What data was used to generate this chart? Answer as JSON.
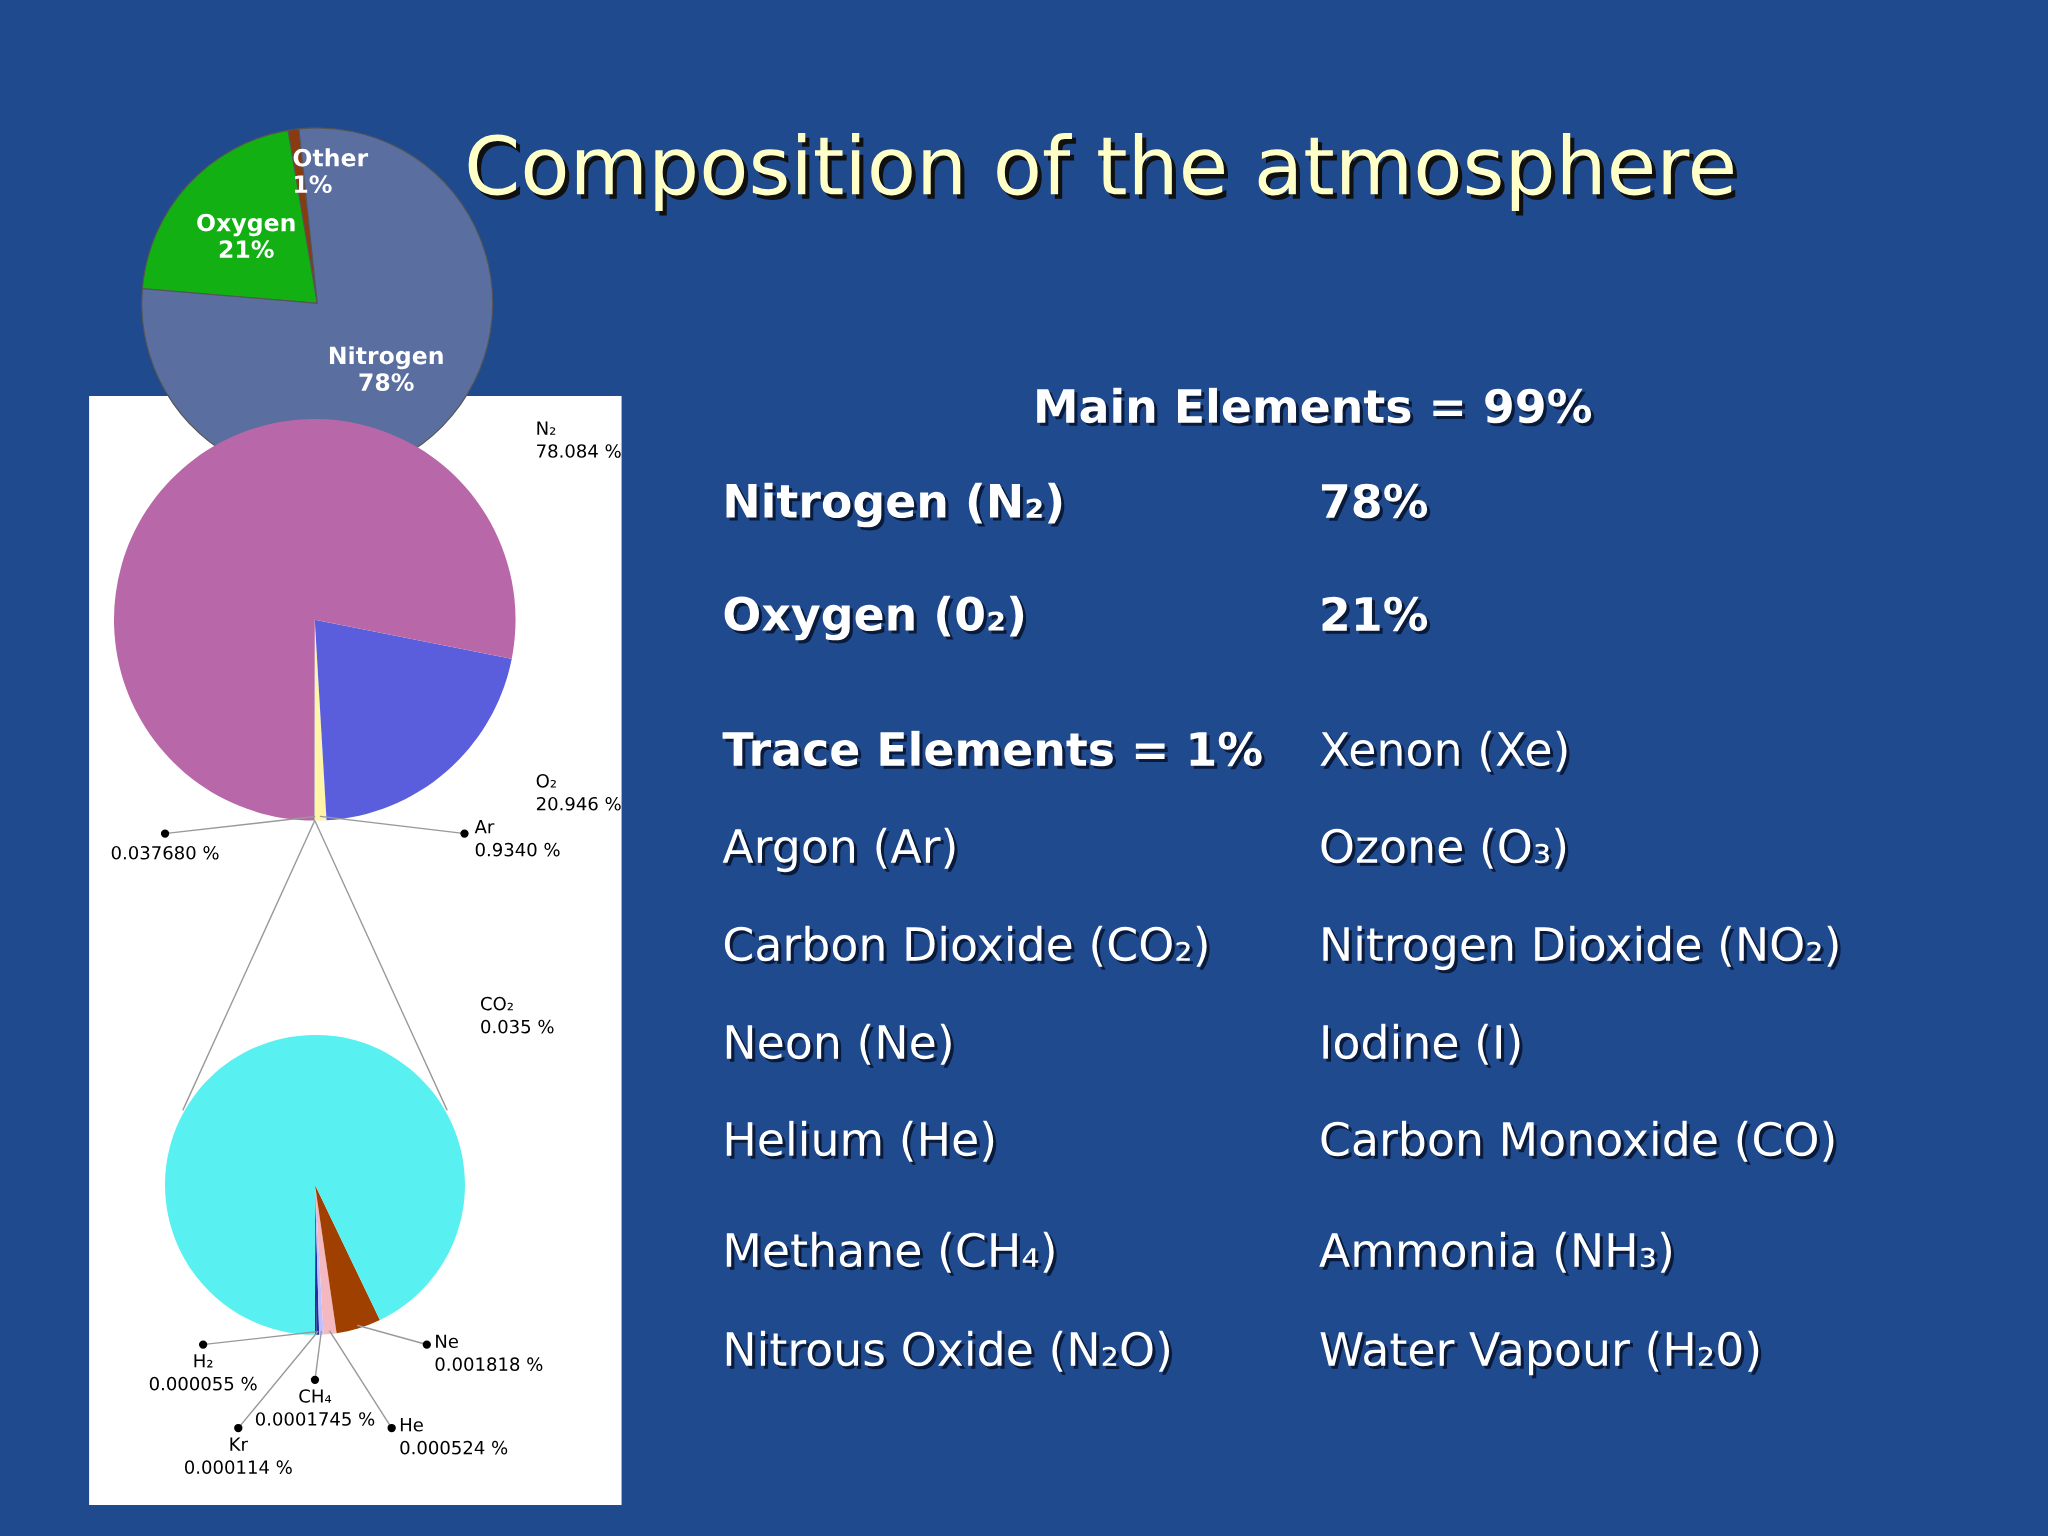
{
  "chart_data": [
    {
      "type": "pie",
      "categories": [
        "Other",
        "Oxygen",
        "Nitrogen"
      ],
      "values": [
        1,
        21,
        78
      ],
      "colors": [
        "#8a3a10",
        "#12b012",
        "#5a6ea0"
      ],
      "value_labels": [
        "1%",
        "21%",
        "78%"
      ]
    },
    {
      "type": "pie",
      "categories": [
        "Ar",
        "O₂",
        "N₂",
        null
      ],
      "values": [
        0.934,
        20.946,
        78.084,
        0.03768
      ],
      "colors": [
        "#fff4a8",
        "#5a5edc",
        "#b868a8",
        "#9a9a9a"
      ],
      "value_labels": [
        "0.9340 %",
        "20.946 %",
        "78.084 %",
        "0.037680 %"
      ]
    },
    {
      "type": "pie",
      "categories": [
        "H₂",
        "Kr",
        "CH₄",
        "He",
        "Ne",
        "CO₂"
      ],
      "values": [
        5.5e-05,
        0.000114,
        0.0001745,
        0.000524,
        0.001818,
        0.035
      ],
      "colors": [
        "#303030",
        "#2030a0",
        "#c0c0ff",
        "#f4b8c0",
        "#a04000",
        "#58f0f0"
      ],
      "value_labels": [
        "0.000055 %",
        "0.000114 %",
        "0.0001745 %",
        "0.000524 %",
        "0.001818 %",
        "0.035 %"
      ]
    },
    {
      "type": "other",
      "title": "Composition of the atmosphere",
      "annotations": [
        "Main Elements = 99%",
        "Nitrogen (N₂)",
        "78%",
        "Oxygen (0₂)",
        "21%",
        "Trace Elements = 1%",
        "Xenon (Xe)",
        "Argon (Ar)",
        "Ozone (O₃)",
        "Carbon Dioxide (CO₂)",
        "Nitrogen Dioxide (NO₂)",
        "Neon (Ne)",
        "Iodine (I)",
        "Helium (He)",
        "Carbon Monoxide (CO)",
        "Methane (CH₄)",
        "Ammonia (NH₃)",
        "Nitrous Oxide (N₂O)",
        "Water Vapour (H₂0)"
      ]
    }
  ]
}
